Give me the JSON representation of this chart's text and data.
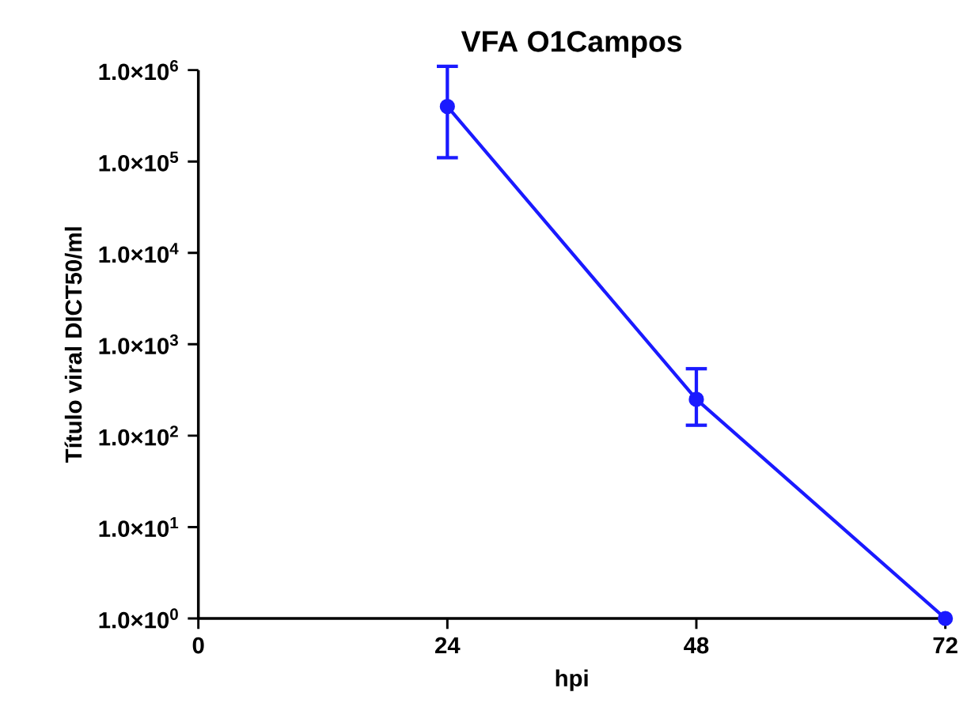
{
  "chart_data": {
    "type": "line",
    "title": "VFA O1Campos",
    "xlabel": "hpi",
    "ylabel": "Título viral DICT50/ml",
    "x": [
      24,
      48,
      72
    ],
    "series": [
      {
        "color": "#1a1aff",
        "values": [
          400000,
          250,
          1
        ],
        "errors": [
          [
            110000,
            1100000
          ],
          [
            130,
            540
          ],
          null
        ]
      }
    ],
    "xlim": [
      0,
      72
    ],
    "xticks": [
      0,
      24,
      48,
      72
    ],
    "ylim": [
      1,
      1000000
    ],
    "yticks": [
      {
        "value": 1,
        "label": "1.0×10$^{0}$"
      },
      {
        "value": 10,
        "label": "1.0×10$^{1}$"
      },
      {
        "value": 100,
        "label": "1.0×10$^{2}$"
      },
      {
        "value": 1000,
        "label": "1.0×10$^{3}$"
      },
      {
        "value": 10000,
        "label": "1.0×10$^{4}$"
      },
      {
        "value": 100000,
        "label": "1.0×10$^{5}$"
      },
      {
        "value": 1000000,
        "label": "1.0×10$^{6}$"
      }
    ],
    "log": "y",
    "marker": "circle",
    "line_style": "solid"
  }
}
